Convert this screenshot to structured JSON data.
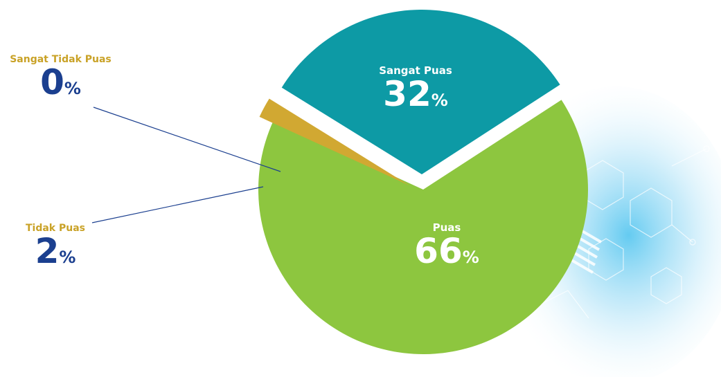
{
  "chart_data": {
    "type": "pie",
    "slices": [
      {
        "label": "Sangat Puas",
        "value": 32,
        "color": "#0d9aa5"
      },
      {
        "label": "Puas",
        "value": 66,
        "color": "#8dc63f"
      },
      {
        "label": "Tidak Puas",
        "value": 2,
        "color": "#d1a832"
      },
      {
        "label": "Sangat Tidak Puas",
        "value": 0,
        "color": "#d1a832"
      }
    ],
    "value_suffix": "%",
    "label_colors": {
      "outside_name": "#c9a227",
      "outside_value": "#1b3f8f",
      "inside": "#ffffff"
    },
    "leader_line_color": "#1b3f8f"
  }
}
